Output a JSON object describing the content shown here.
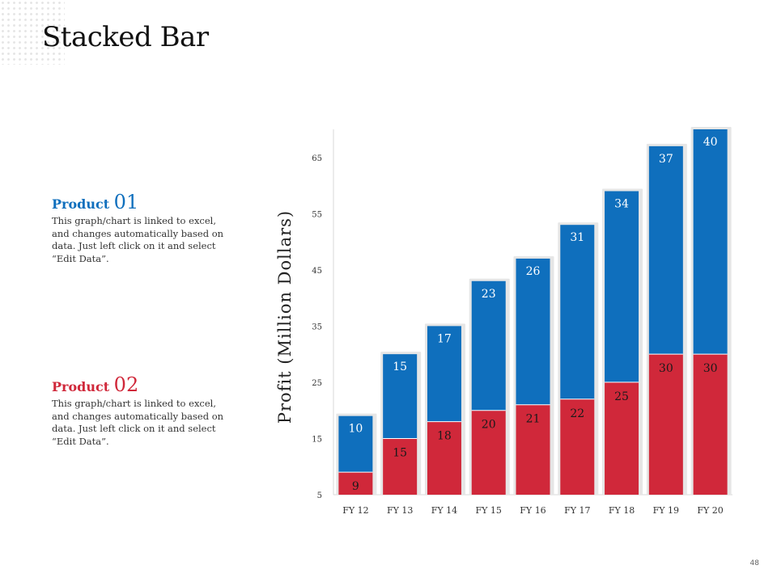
{
  "page": {
    "title": "Stacked Bar",
    "page_number": "48"
  },
  "legend": [
    {
      "label": "Product",
      "num": "01",
      "description": "This graph/chart is linked to excel, and changes automatically based on data. Just left click on it and select “Edit Data”.",
      "color": "#0f6fbd"
    },
    {
      "label": "Product",
      "num": "02",
      "description": "This graph/chart is linked to excel, and changes automatically based on data. Just left click on it and select “Edit Data”.",
      "color": "#d0283a"
    }
  ],
  "chart_data": {
    "type": "bar",
    "stacked": true,
    "title": "Stacked Bar",
    "xlabel": "",
    "ylabel": "Profit (Million Dollars)",
    "ylim": [
      5,
      70
    ],
    "yticks": [
      5,
      15,
      25,
      35,
      45,
      55,
      65
    ],
    "categories": [
      "FY 12",
      "FY 13",
      "FY 14",
      "FY 15",
      "FY 16",
      "FY 17",
      "FY 18",
      "FY 19",
      "FY 20"
    ],
    "series": [
      {
        "name": "Product 02",
        "color": "#d0283a",
        "values": [
          9,
          15,
          18,
          20,
          21,
          22,
          25,
          30,
          30
        ]
      },
      {
        "name": "Product 01",
        "color": "#0f6fbd",
        "values": [
          10,
          15,
          17,
          23,
          26,
          31,
          34,
          37,
          40
        ]
      }
    ]
  }
}
